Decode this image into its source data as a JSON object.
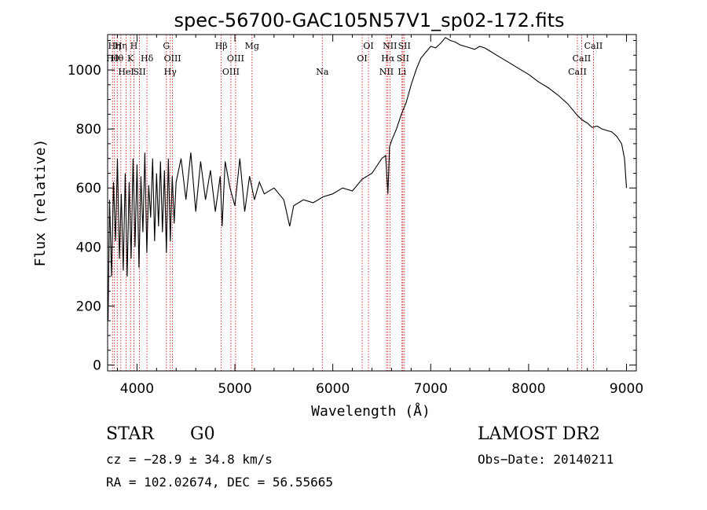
{
  "chart_data": {
    "type": "line",
    "title": "spec-56700-GAC105N57V1_sp02-172.fits",
    "xlabel": "Wavelength (Å)",
    "ylabel": "Flux (relative)",
    "xlim": [
      3700,
      9100
    ],
    "ylim": [
      -20,
      1120
    ],
    "x_ticks": [
      4000,
      5000,
      6000,
      7000,
      8000,
      9000
    ],
    "y_ticks": [
      0,
      200,
      400,
      600,
      800,
      1000
    ],
    "x_tick_labels": [
      "4000",
      "5000",
      "6000",
      "7000",
      "8000",
      "9000"
    ],
    "y_tick_labels": [
      "0",
      "200",
      "400",
      "600",
      "800",
      "1000"
    ],
    "grid": false,
    "line_color": "#000000",
    "marker_color": "#cc0000",
    "series": [
      {
        "x": [
          3705,
          3720,
          3740,
          3760,
          3780,
          3800,
          3820,
          3840,
          3860,
          3880,
          3900,
          3920,
          3940,
          3960,
          3980,
          4000,
          4020,
          4040,
          4060,
          4080,
          4100,
          4120,
          4140,
          4160,
          4180,
          4200,
          4220,
          4240,
          4260,
          4280,
          4300,
          4320,
          4340,
          4360,
          4380,
          4400,
          4450,
          4500,
          4550,
          4600,
          4650,
          4700,
          4750,
          4800,
          4850,
          4870,
          4900,
          4950,
          5000,
          5050,
          5100,
          5150,
          5200,
          5250,
          5300,
          5400,
          5500,
          5560,
          5600,
          5700,
          5800,
          5900,
          6000,
          6100,
          6200,
          6300,
          6400,
          6500,
          6540,
          6563,
          6580,
          6600,
          6650,
          6700,
          6750,
          6800,
          6850,
          6900,
          6950,
          7000,
          7050,
          7100,
          7150,
          7200,
          7250,
          7300,
          7350,
          7400,
          7450,
          7500,
          7550,
          7600,
          7700,
          7800,
          7900,
          8000,
          8100,
          8200,
          8300,
          8400,
          8500,
          8550,
          8600,
          8650,
          8700,
          8750,
          8800,
          8850,
          8900,
          8950,
          8980,
          9000
        ],
        "y": [
          150,
          560,
          300,
          620,
          420,
          700,
          360,
          580,
          320,
          650,
          300,
          620,
          360,
          700,
          400,
          680,
          330,
          640,
          450,
          720,
          380,
          610,
          500,
          700,
          420,
          650,
          470,
          690,
          450,
          660,
          380,
          700,
          420,
          640,
          480,
          620,
          700,
          560,
          720,
          520,
          690,
          560,
          660,
          520,
          640,
          470,
          690,
          600,
          540,
          700,
          520,
          640,
          560,
          620,
          580,
          600,
          560,
          470,
          540,
          560,
          550,
          570,
          580,
          600,
          590,
          630,
          650,
          700,
          710,
          580,
          740,
          760,
          800,
          850,
          890,
          950,
          1000,
          1040,
          1060,
          1080,
          1075,
          1090,
          1110,
          1100,
          1095,
          1085,
          1080,
          1075,
          1070,
          1080,
          1075,
          1065,
          1045,
          1025,
          1005,
          985,
          960,
          940,
          915,
          885,
          845,
          830,
          820,
          805,
          810,
          800,
          795,
          790,
          775,
          750,
          700,
          600
        ]
      }
    ],
    "line_markers": [
      {
        "wl": 3750,
        "label": "Hθ",
        "row": 1
      },
      {
        "wl": 3770,
        "label": "Hη",
        "row": 0
      },
      {
        "wl": 3798,
        "label": "Hθ",
        "row": 1
      },
      {
        "wl": 3835,
        "label": "Hη",
        "row": 0
      },
      {
        "wl": 3889,
        "label": "HeI",
        "row": 2
      },
      {
        "wl": 3934,
        "label": "K",
        "row": 1
      },
      {
        "wl": 3969,
        "label": "H",
        "row": 0
      },
      {
        "wl": 4026,
        "label": "SII",
        "row": 2
      },
      {
        "wl": 4102,
        "label": "Hδ",
        "row": 1
      },
      {
        "wl": 4300,
        "label": "G",
        "row": 0
      },
      {
        "wl": 4340,
        "label": "Hγ",
        "row": 2
      },
      {
        "wl": 4363,
        "label": "OIII",
        "row": 1
      },
      {
        "wl": 4861,
        "label": "Hβ",
        "row": 0
      },
      {
        "wl": 4959,
        "label": "OIII",
        "row": 2
      },
      {
        "wl": 5007,
        "label": "OIII",
        "row": 1
      },
      {
        "wl": 5175,
        "label": "Mg",
        "row": 0
      },
      {
        "wl": 5893,
        "label": "Na",
        "row": 2
      },
      {
        "wl": 6300,
        "label": "OI",
        "row": 1
      },
      {
        "wl": 6364,
        "label": "OI",
        "row": 0
      },
      {
        "wl": 6548,
        "label": "NII",
        "row": 2
      },
      {
        "wl": 6563,
        "label": "Hα",
        "row": 1
      },
      {
        "wl": 6583,
        "label": "NII",
        "row": 0
      },
      {
        "wl": 6707,
        "label": "Li",
        "row": 2
      },
      {
        "wl": 6716,
        "label": "SII",
        "row": 1
      },
      {
        "wl": 6731,
        "label": "SII",
        "row": 0
      },
      {
        "wl": 8498,
        "label": "CaII",
        "row": 2
      },
      {
        "wl": 8542,
        "label": "CaII",
        "row": 1
      },
      {
        "wl": 8662,
        "label": "CaII",
        "row": 0
      }
    ]
  },
  "info": {
    "object_class": "STAR",
    "subclass": "G0",
    "survey": "LAMOST DR2",
    "cz": "cz = −28.9 ± 34.8 km/s",
    "obs_date": "Obs−Date: 20140211",
    "coords": "RA = 102.02674, DEC =  56.55665"
  }
}
